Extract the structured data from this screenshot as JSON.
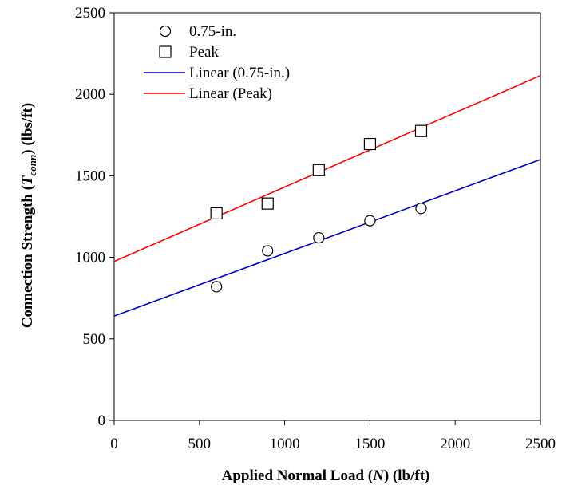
{
  "chart_data": {
    "type": "scatter",
    "title": "",
    "xlabel": {
      "prefix": "Applied Normal Load (",
      "var": "N",
      "suffix": ") (lb/ft)"
    },
    "ylabel": {
      "prefix": "Connection Strength (",
      "var": "T",
      "sub": "conn",
      "suffix": ") (lbs/ft)"
    },
    "xlim": [
      0,
      2500
    ],
    "ylim": [
      0,
      2500
    ],
    "xticks": [
      0,
      500,
      1000,
      1500,
      2000,
      2500
    ],
    "yticks": [
      0,
      500,
      1000,
      1500,
      2000,
      2500
    ],
    "xtick_labels": [
      "0",
      "500",
      "1000",
      "1500",
      "2000",
      "2500"
    ],
    "ytick_labels": [
      "0",
      "500",
      "1000",
      "1500",
      "2000",
      "2500"
    ],
    "grid": false,
    "legend_position": "top-left",
    "series": [
      {
        "name": "0.75-in.",
        "marker": "circle",
        "x": [
          600,
          900,
          1200,
          1500,
          1800
        ],
        "y": [
          820,
          1040,
          1120,
          1225,
          1300
        ]
      },
      {
        "name": "Peak",
        "marker": "square",
        "x": [
          600,
          900,
          1200,
          1500,
          1800
        ],
        "y": [
          1270,
          1330,
          1535,
          1695,
          1775
        ]
      }
    ],
    "trendlines": [
      {
        "name": "Linear (0.75-in.)",
        "color": "#0000cc",
        "x": [
          0,
          2500
        ],
        "y": [
          640,
          1600
        ]
      },
      {
        "name": "Linear (Peak)",
        "color": "#ff0000",
        "x": [
          0,
          2500
        ],
        "y": [
          975,
          2115
        ]
      }
    ]
  }
}
